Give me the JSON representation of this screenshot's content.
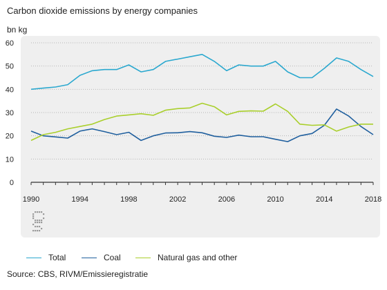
{
  "chart_data": {
    "type": "line",
    "title": "Carbon dioxide emissions by energy companies",
    "unit_label": "bn kg",
    "ylim": [
      0,
      60
    ],
    "yticks": [
      0,
      10,
      20,
      30,
      40,
      50,
      60
    ],
    "xlim": [
      1990,
      2018
    ],
    "xticks": [
      1990,
      1994,
      1998,
      2002,
      2006,
      2010,
      2014,
      2018
    ],
    "grid": "horizontal dotted",
    "legend_position": "bottom",
    "x": [
      1990,
      1991,
      1992,
      1993,
      1994,
      1995,
      1996,
      1997,
      1998,
      1999,
      2000,
      2001,
      2002,
      2003,
      2004,
      2005,
      2006,
      2007,
      2008,
      2009,
      2010,
      2011,
      2012,
      2013,
      2014,
      2015,
      2016,
      2017,
      2018
    ],
    "series": [
      {
        "name": "Total",
        "color": "#2aa8cf",
        "values": [
          40,
          40.5,
          41,
          42,
          46,
          48,
          48.5,
          48.5,
          50.5,
          47.5,
          48.5,
          52,
          53,
          54,
          55,
          52,
          48,
          50.5,
          50,
          50,
          52,
          47.5,
          45,
          45,
          49,
          53.5,
          52,
          48.5,
          45.5
        ]
      },
      {
        "name": "Coal",
        "color": "#1f5f9e",
        "values": [
          22,
          20,
          19.5,
          19,
          22,
          23,
          21.8,
          20.5,
          21.5,
          18,
          20,
          21.2,
          21.3,
          21.8,
          21.3,
          19.8,
          19.3,
          20.3,
          19.6,
          19.6,
          18.5,
          17.5,
          20,
          21,
          24.5,
          31.5,
          28.5,
          24,
          20.5
        ]
      },
      {
        "name": "Natural gas and other",
        "color": "#a9cf2b",
        "values": [
          18,
          20.5,
          21.5,
          23,
          24,
          25,
          27,
          28.5,
          29,
          29.5,
          28.8,
          31,
          31.7,
          32,
          34,
          32.5,
          29,
          30.5,
          30.7,
          30.6,
          33.7,
          30.5,
          25,
          24.5,
          24.7,
          22,
          23.8,
          25,
          25
        ]
      }
    ]
  },
  "legend": {
    "items": [
      {
        "label": "Total",
        "color": "#2aa8cf"
      },
      {
        "label": "Coal",
        "color": "#1f5f9e"
      },
      {
        "label": "Natural gas and other",
        "color": "#a9cf2b"
      }
    ]
  },
  "logo": {
    "name": "cbs-logo"
  },
  "source": "Source: CBS, RIVM/Emissieregistratie",
  "colors": {
    "panel_bg": "#efefef",
    "grid": "#b5b5b5",
    "axis": "#333333"
  }
}
